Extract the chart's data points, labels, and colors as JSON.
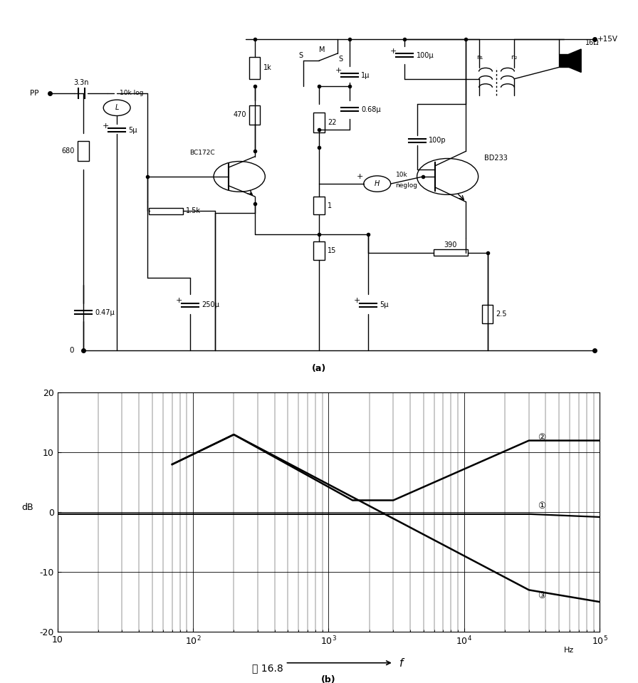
{
  "title_a": "(a)",
  "title_b": "(b)",
  "figure_label": "图 16.8",
  "graph_b": {
    "xmin": 10,
    "xmax": 100000,
    "ymin": -20,
    "ymax": 20,
    "yticks": [
      -20,
      -10,
      0,
      10,
      20
    ],
    "ylabel": "dB",
    "xlabel": "f",
    "freq_label": "Hz",
    "curve1_label": "①",
    "curve2_label": "②",
    "curve3_label": "③"
  },
  "bg_color": "#ffffff",
  "line_color": "#000000",
  "components": {
    "bc172c": "BC172C",
    "bd233": "BD233",
    "r1": "1k",
    "r2": "470",
    "r3": "1.5k",
    "r4": "22",
    "r5": "1",
    "r6": "15",
    "r7": "390",
    "r8": "2.5",
    "r9": "680",
    "r10": "10k log",
    "r11": "10k\nneglog",
    "c1": "3.3n",
    "c2": "5μ",
    "c3": "1μ",
    "c4": "0.68μ",
    "c5": "100μ",
    "c6": "100p",
    "c7": "250μ",
    "c8": "5μ",
    "c9": "0.47μ",
    "v_supply": "+15V",
    "r_load": "16Ω",
    "pot_l": "10k log",
    "pot_h": "10k\nneglog",
    "switch_label": "S  M\n   S",
    "n1": "n₁",
    "n2": "n₂"
  }
}
